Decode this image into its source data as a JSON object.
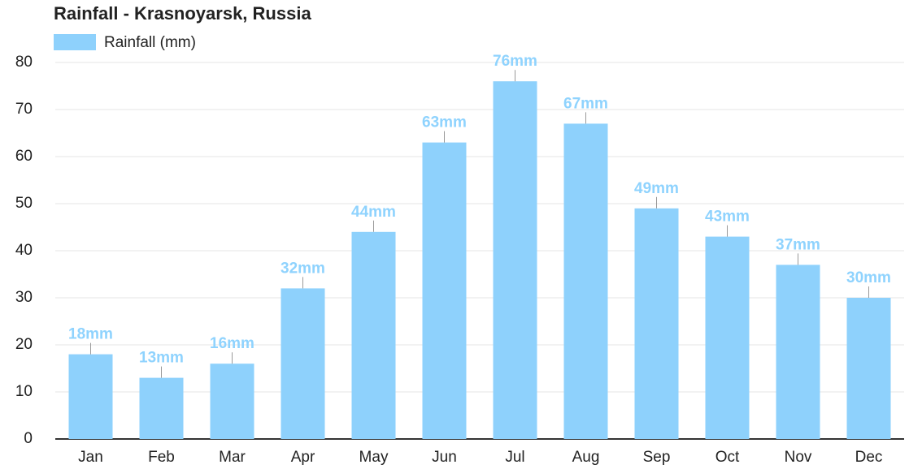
{
  "chart_data": {
    "type": "bar",
    "title": "Rainfall - Krasnoyarsk, Russia",
    "categories": [
      "Jan",
      "Feb",
      "Mar",
      "Apr",
      "May",
      "Jun",
      "Jul",
      "Aug",
      "Sep",
      "Oct",
      "Nov",
      "Dec"
    ],
    "series": [
      {
        "name": "Rainfall (mm)",
        "color": "#8ed1fc",
        "values": [
          18,
          13,
          16,
          32,
          44,
          63,
          76,
          67,
          49,
          43,
          37,
          30
        ],
        "value_labels": [
          "18mm",
          "13mm",
          "16mm",
          "32mm",
          "44mm",
          "63mm",
          "76mm",
          "67mm",
          "49mm",
          "43mm",
          "37mm",
          "30mm"
        ]
      }
    ],
    "ylim": [
      0,
      80
    ],
    "yticks": [
      0,
      10,
      20,
      30,
      40,
      50,
      60,
      70,
      80
    ],
    "grid": true
  }
}
